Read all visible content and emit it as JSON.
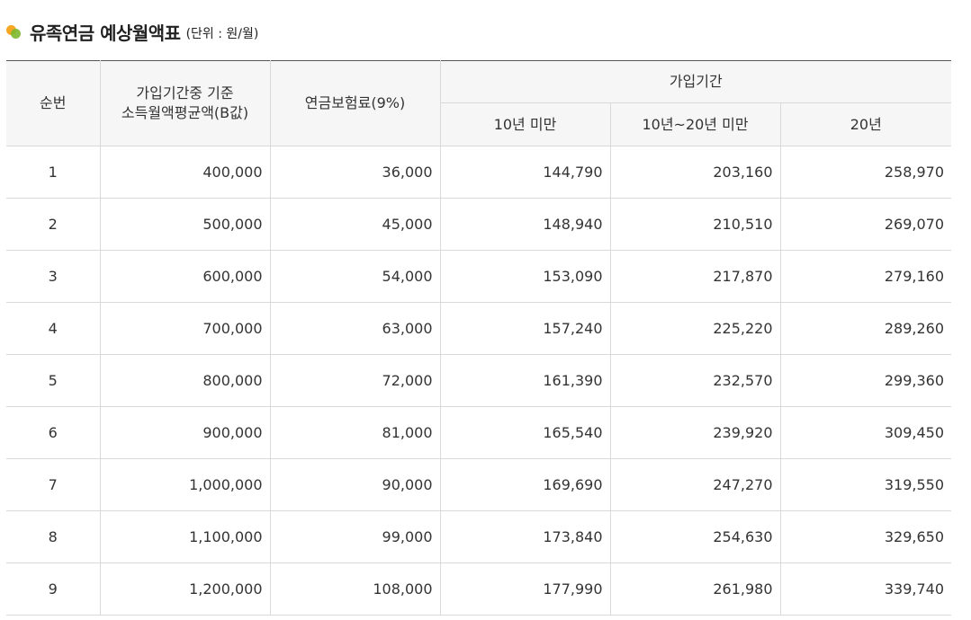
{
  "header": {
    "title": "유족연금 예상월액표",
    "unit": "(단위 : 원/월)"
  },
  "table": {
    "columns": {
      "seq": "순번",
      "income_line1": "가입기간중 기준",
      "income_line2": "소득월액평균액(B값)",
      "premium": "연금보험료(9%)",
      "period_group": "가입기간",
      "under10": "10년 미만",
      "10to20": "10년~20년 미만",
      "20": "20년"
    },
    "rows": [
      {
        "seq": "1",
        "income": "400,000",
        "premium": "36,000",
        "under10": "144,790",
        "mid": "203,160",
        "over20": "258,970"
      },
      {
        "seq": "2",
        "income": "500,000",
        "premium": "45,000",
        "under10": "148,940",
        "mid": "210,510",
        "over20": "269,070"
      },
      {
        "seq": "3",
        "income": "600,000",
        "premium": "54,000",
        "under10": "153,090",
        "mid": "217,870",
        "over20": "279,160"
      },
      {
        "seq": "4",
        "income": "700,000",
        "premium": "63,000",
        "under10": "157,240",
        "mid": "225,220",
        "over20": "289,260"
      },
      {
        "seq": "5",
        "income": "800,000",
        "premium": "72,000",
        "under10": "161,390",
        "mid": "232,570",
        "over20": "299,360"
      },
      {
        "seq": "6",
        "income": "900,000",
        "premium": "81,000",
        "under10": "165,540",
        "mid": "239,920",
        "over20": "309,450"
      },
      {
        "seq": "7",
        "income": "1,000,000",
        "premium": "90,000",
        "under10": "169,690",
        "mid": "247,270",
        "over20": "319,550"
      },
      {
        "seq": "8",
        "income": "1,100,000",
        "premium": "99,000",
        "under10": "173,840",
        "mid": "254,630",
        "over20": "329,650"
      },
      {
        "seq": "9",
        "income": "1,200,000",
        "premium": "108,000",
        "under10": "177,990",
        "mid": "261,980",
        "over20": "339,740"
      }
    ]
  },
  "colors": {
    "bullet_orange": "#f5a623",
    "bullet_green": "#7cb82f",
    "header_bg": "#f6f6f6",
    "top_border": "#555555",
    "grid": "#d9d9d9"
  }
}
